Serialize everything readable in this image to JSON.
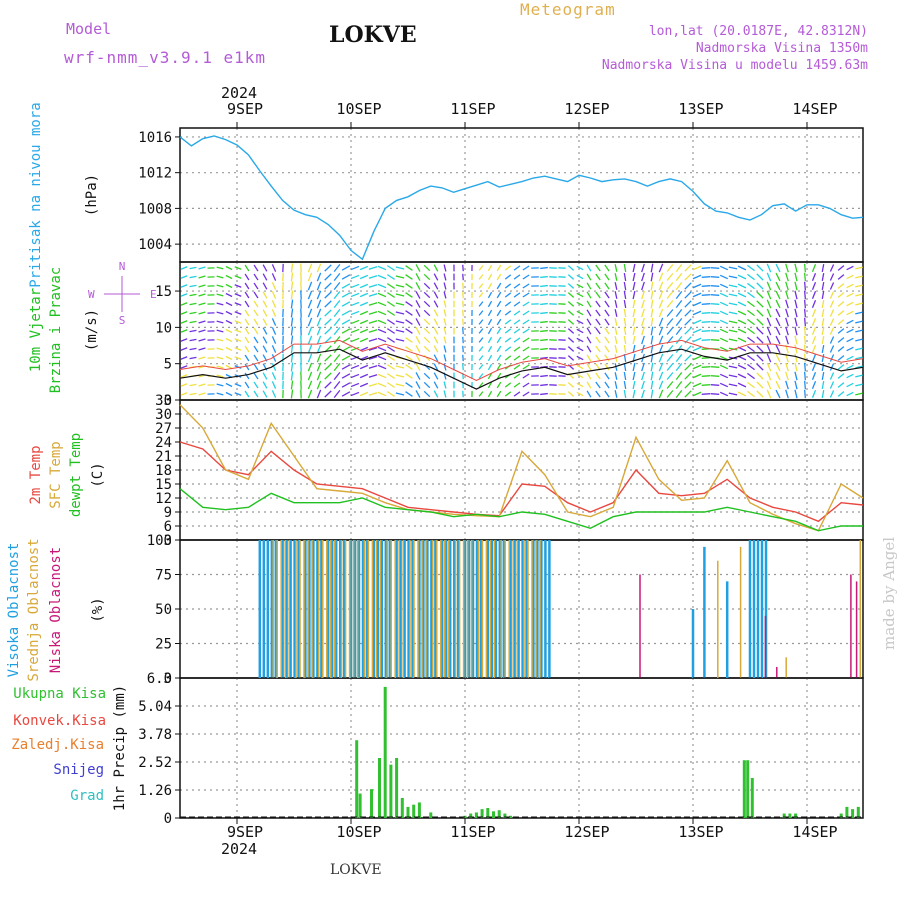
{
  "header": {
    "model_label": "Model",
    "model_name": "wrf-nmm_v3.9.1 e1km",
    "station": "LOKVE",
    "title": "Meteogram",
    "lonlat": "lon,lat (20.0187E, 42.8312N)",
    "elevation": "Nadmorska Visina 1350m",
    "model_elevation": "Nadmorska Visina u modelu 1459.63m"
  },
  "footer": {
    "station": "LOKVE",
    "watermark": "made by Angel"
  },
  "colors": {
    "pressure": "#2aa8e8",
    "wind_text": "#20c020",
    "temp2m": "#e84840",
    "sfc": "#d8a838",
    "dewpt": "#20c020",
    "high_cloud": "#20a0e0",
    "mid_cloud": "#d8a838",
    "low_cloud": "#c81878",
    "precip": "#30c030",
    "purple": "#b45bd6"
  },
  "chart_data": [
    {
      "type": "line",
      "x_axis": {
        "year": "2024",
        "ticks": [
          "9SEP",
          "10SEP",
          "11SEP",
          "12SEP",
          "13SEP",
          "14SEP"
        ]
      },
      "ylabel": "Pritisak na nivou mora",
      "unit": "(hPa)",
      "ylim": [
        1002,
        1017
      ],
      "yticks": [
        1004,
        1008,
        1012,
        1016
      ],
      "series": [
        {
          "name": "pressure",
          "x": [
            -0.5,
            -0.4,
            -0.3,
            -0.2,
            -0.1,
            0,
            0.1,
            0.2,
            0.3,
            0.4,
            0.5,
            0.6,
            0.7,
            0.8,
            0.9,
            1.0,
            1.1,
            1.2,
            1.3,
            1.4,
            1.5,
            1.6,
            1.7,
            1.8,
            1.9,
            2.0,
            2.1,
            2.2,
            2.3,
            2.4,
            2.5,
            2.6,
            2.7,
            2.8,
            2.9,
            3.0,
            3.1,
            3.2,
            3.3,
            3.4,
            3.5,
            3.6,
            3.7,
            3.8,
            3.9,
            4.0,
            4.1,
            4.2,
            4.3,
            4.4,
            4.5,
            4.6,
            4.7,
            4.8,
            4.9,
            5.0,
            5.1,
            5.2,
            5.3,
            5.4,
            5.5
          ],
          "values": [
            1016.0,
            1015.0,
            1015.8,
            1016.1,
            1015.7,
            1015.1,
            1014.0,
            1012.2,
            1010.5,
            1008.9,
            1007.8,
            1007.3,
            1007.0,
            1006.2,
            1005.0,
            1003.3,
            1002.3,
            1005.4,
            1008.0,
            1008.9,
            1009.3,
            1010.0,
            1010.5,
            1010.3,
            1009.8,
            1010.2,
            1010.6,
            1011.0,
            1010.4,
            1010.7,
            1011.0,
            1011.4,
            1011.6,
            1011.3,
            1011.0,
            1011.7,
            1011.4,
            1011.0,
            1011.2,
            1011.3,
            1011.0,
            1010.5,
            1011.0,
            1011.3,
            1011.0,
            1009.9,
            1008.5,
            1007.7,
            1007.5,
            1007.0,
            1006.7,
            1007.3,
            1008.3,
            1008.5,
            1007.7,
            1008.4,
            1008.4,
            1008.0,
            1007.3,
            1006.9,
            1007.0
          ]
        }
      ]
    },
    {
      "type": "line",
      "ylabel": "10m Vjetar Brzina i Pravac",
      "unit": "(m/s)",
      "ylim": [
        0,
        19
      ],
      "yticks": [
        0,
        5,
        10,
        15
      ],
      "compass": {
        "north": "N",
        "west": "W",
        "east": "E",
        "south": "S"
      },
      "series": [
        {
          "name": "wind_speed",
          "x": [
            -0.5,
            -0.3,
            -0.1,
            0.1,
            0.3,
            0.5,
            0.7,
            0.9,
            1.1,
            1.3,
            1.5,
            1.7,
            1.9,
            2.1,
            2.3,
            2.5,
            2.7,
            2.9,
            3.1,
            3.3,
            3.5,
            3.7,
            3.9,
            4.1,
            4.3,
            4.5,
            4.7,
            4.9,
            5.1,
            5.3,
            5.5
          ],
          "values": [
            3.0,
            3.5,
            3.0,
            3.5,
            4.5,
            6.5,
            6.5,
            7.0,
            5.5,
            6.5,
            5.5,
            4.5,
            3.0,
            1.5,
            3.0,
            4.0,
            4.5,
            3.5,
            4.0,
            4.5,
            5.5,
            6.5,
            7.0,
            6.0,
            5.5,
            6.5,
            6.5,
            6.0,
            5.0,
            4.0,
            4.5
          ]
        }
      ]
    },
    {
      "type": "line",
      "ylabel": "2m Temp / SFC Temp / dewpt Temp",
      "unit": "(C)",
      "ylim": [
        3,
        33
      ],
      "yticks": [
        3,
        6,
        9,
        12,
        15,
        18,
        21,
        24,
        27,
        30,
        33
      ],
      "legend": [
        "2m Temp",
        "SFC Temp",
        "dewpt Temp"
      ],
      "x": [
        -0.5,
        -0.3,
        -0.1,
        0.1,
        0.3,
        0.5,
        0.7,
        0.9,
        1.1,
        1.3,
        1.5,
        1.7,
        1.9,
        2.1,
        2.3,
        2.5,
        2.7,
        2.9,
        3.1,
        3.3,
        3.5,
        3.7,
        3.9,
        4.1,
        4.3,
        4.5,
        4.7,
        4.9,
        5.1,
        5.3,
        5.5
      ],
      "series": [
        {
          "name": "2m Temp",
          "values": [
            24,
            22.5,
            18,
            17,
            22,
            18,
            15,
            14.5,
            14,
            12,
            10,
            9.5,
            9,
            8.5,
            8.2,
            15,
            14.5,
            11,
            9,
            11,
            18,
            13,
            12.5,
            13,
            16,
            12,
            10,
            9,
            7,
            11,
            10.5
          ]
        },
        {
          "name": "SFC Temp",
          "values": [
            32,
            27,
            18,
            16,
            28,
            21,
            14,
            13.5,
            13,
            11,
            9.5,
            9,
            8.5,
            8.2,
            8,
            22,
            17,
            9,
            8,
            10,
            25,
            16,
            11.5,
            12,
            20,
            11,
            8.5,
            6.5,
            5,
            15,
            12
          ]
        },
        {
          "name": "dewpt Temp",
          "values": [
            14,
            10,
            9.5,
            10,
            13,
            11,
            11,
            11,
            12,
            10,
            9.5,
            9,
            8,
            8.5,
            8,
            9,
            8.5,
            7,
            5.5,
            8,
            9,
            9,
            9,
            9,
            10,
            9,
            8,
            7,
            5,
            6,
            6
          ]
        }
      ]
    },
    {
      "type": "bar",
      "ylabel": "Visoka Oblacnost / Srednja Oblacnost / Niska Oblacnost",
      "unit": "(%)",
      "ylim": [
        0,
        100
      ],
      "yticks": [
        0,
        25,
        50,
        75,
        100
      ],
      "legend": [
        "Visoka Oblacnost",
        "Srednja Oblacnost",
        "Niska Oblacnost"
      ],
      "series": [
        {
          "name": "Visoka Oblacnost",
          "x": [
            0.2,
            0.4,
            0.6,
            0.8,
            1.0,
            1.2,
            1.4,
            1.6,
            1.8,
            2.0,
            2.2,
            2.4,
            2.6,
            4.0,
            4.1,
            4.3,
            4.5
          ],
          "values": [
            100,
            100,
            100,
            100,
            100,
            100,
            100,
            100,
            100,
            100,
            100,
            100,
            100,
            50,
            95,
            70,
            100
          ]
        },
        {
          "name": "Srednja Oblacnost",
          "x": [
            0.3,
            0.5,
            0.7,
            0.9,
            1.1,
            1.3,
            1.5,
            1.7,
            1.9,
            2.1,
            2.3,
            2.5,
            4.2,
            4.4,
            4.8,
            5.45
          ],
          "values": [
            100,
            100,
            100,
            100,
            100,
            100,
            100,
            100,
            100,
            100,
            100,
            100,
            85,
            95,
            15,
            100
          ]
        },
        {
          "name": "Niska Oblacnost",
          "x": [
            3.5,
            4.6,
            4.7,
            5.35,
            5.4
          ],
          "values": [
            75,
            45,
            8,
            75,
            70
          ]
        }
      ]
    },
    {
      "type": "bar",
      "ylabel": "1hr Precip",
      "unit": "(mm)",
      "ylim": [
        0,
        6.3
      ],
      "yticks": [
        0,
        1.26,
        2.52,
        3.78,
        5.04,
        6.3
      ],
      "legend": [
        "Ukupna Kisa",
        "Konvek.Kisa",
        "Zaledj.Kisa",
        "Snijeg",
        "Grad"
      ],
      "series": [
        {
          "name": "Ukupna Kisa",
          "x": [
            1.05,
            1.08,
            1.18,
            1.25,
            1.3,
            1.35,
            1.4,
            1.45,
            1.5,
            1.55,
            1.6,
            1.7,
            2.0,
            2.05,
            2.1,
            2.15,
            2.2,
            2.25,
            2.3,
            2.35,
            2.4,
            4.45,
            4.48,
            4.52,
            4.8,
            4.85,
            4.9,
            5.3,
            5.35,
            5.4,
            5.45,
            5.5
          ],
          "values": [
            3.5,
            1.1,
            1.3,
            2.7,
            5.9,
            2.4,
            2.7,
            0.9,
            0.5,
            0.6,
            0.7,
            0.25,
            0.1,
            0.2,
            0.25,
            0.4,
            0.45,
            0.3,
            0.35,
            0.2,
            0.1,
            2.6,
            2.6,
            1.8,
            0.2,
            0.2,
            0.2,
            0.2,
            0.5,
            0.4,
            0.5,
            0.6
          ]
        }
      ]
    }
  ]
}
